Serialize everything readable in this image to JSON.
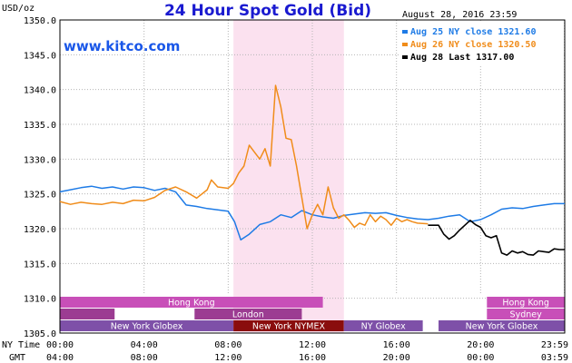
{
  "header": {
    "title": "24 Hour Spot Gold (Bid)",
    "currency": "USD/oz",
    "timestamp": "August 28, 2016 23:59",
    "watermark": "www.kitco.com"
  },
  "legend": [
    {
      "label": "Aug 25 NY close 1321.60",
      "color": "#1e7be6"
    },
    {
      "label": "Aug 26 NY close 1320.50",
      "color": "#f08c1a"
    },
    {
      "label": "Aug 28 Last 1317.00",
      "color": "#000000"
    }
  ],
  "chart_data": {
    "type": "line",
    "title": "24 Hour Spot Gold (Bid)",
    "ylabel": "USD/oz",
    "ylim": [
      1305.0,
      1350.0
    ],
    "yticks": [
      "1350.0",
      "1345.0",
      "1340.0",
      "1335.0",
      "1330.0",
      "1325.0",
      "1320.0",
      "1315.0",
      "1310.0",
      "1305.0"
    ],
    "xlim": [
      0,
      24
    ],
    "x_tick_hours": [
      0,
      4,
      8,
      12,
      16,
      20,
      23.983
    ],
    "x_rows": [
      {
        "label": "NY Time",
        "ticks": [
          "00:00",
          "04:00",
          "08:00",
          "12:00",
          "16:00",
          "20:00",
          "23:59"
        ]
      },
      {
        "label": "GMT",
        "ticks": [
          "04:00",
          "08:00",
          "12:00",
          "16:00",
          "20:00",
          "00:00",
          "03:59"
        ]
      }
    ],
    "grid": true,
    "legend_position": "top-right",
    "highlight": {
      "start": 8.25,
      "end": 13.5,
      "color": "#fbe1ef"
    },
    "sessions": [
      {
        "name": "Hong Kong",
        "row": 0,
        "start": 0,
        "end": 12.5,
        "color": "#c84fb8",
        "show_label": true
      },
      {
        "name": "Hong Kong",
        "row": 0,
        "start": 20.3,
        "end": 24,
        "color": "#c84fb8",
        "show_label": true
      },
      {
        "name": "London",
        "row": 1,
        "start": 0,
        "end": 2.6,
        "color": "#9c3c92",
        "show_label": false
      },
      {
        "name": "London",
        "row": 1,
        "start": 6.4,
        "end": 11.5,
        "color": "#9c3c92",
        "show_label": true
      },
      {
        "name": "Sydney",
        "row": 1,
        "start": 20.3,
        "end": 24,
        "color": "#c84fb8",
        "show_label": true
      },
      {
        "name": "New York Globex",
        "row": 2,
        "start": 0,
        "end": 8.25,
        "color": "#7e50a8",
        "show_label": true
      },
      {
        "name": "New York NYMEX",
        "row": 2,
        "start": 8.25,
        "end": 13.5,
        "color": "#8a0d0d",
        "show_label": true
      },
      {
        "name": "NY Globex",
        "row": 2,
        "start": 13.5,
        "end": 17.25,
        "color": "#7e50a8",
        "show_label": true
      },
      {
        "name": "New York Globex",
        "row": 2,
        "start": 18.0,
        "end": 24,
        "color": "#7e50a8",
        "show_label": true
      }
    ],
    "series": [
      {
        "name": "Aug 25 NY close 1321.60",
        "color": "#1e7be6",
        "x": [
          0,
          0.5,
          1,
          1.5,
          2,
          2.5,
          3,
          3.5,
          4,
          4.5,
          5,
          5.5,
          6,
          6.5,
          7,
          7.5,
          8,
          8.3,
          8.6,
          9,
          9.5,
          10,
          10.5,
          11,
          11.5,
          12,
          12.5,
          13,
          13.5,
          14,
          14.5,
          15,
          15.5,
          16,
          16.5,
          17,
          17.5,
          18,
          18.5,
          19,
          19.5,
          20,
          20.5,
          21,
          21.5,
          22,
          22.5,
          23,
          23.5,
          24
        ],
        "y": [
          1325.3,
          1325.6,
          1325.9,
          1326.1,
          1325.8,
          1326.0,
          1325.7,
          1326.0,
          1325.9,
          1325.5,
          1325.8,
          1325.3,
          1323.4,
          1323.2,
          1322.9,
          1322.7,
          1322.5,
          1321.0,
          1318.4,
          1319.2,
          1320.6,
          1321.0,
          1322.0,
          1321.6,
          1322.6,
          1322.0,
          1321.7,
          1321.5,
          1321.9,
          1322.1,
          1322.3,
          1322.2,
          1322.3,
          1321.9,
          1321.6,
          1321.4,
          1321.3,
          1321.5,
          1321.8,
          1322.0,
          1321.0,
          1321.3,
          1322.0,
          1322.8,
          1323.0,
          1322.9,
          1323.2,
          1323.4,
          1323.6,
          1323.6
        ]
      },
      {
        "name": "Aug 26 NY close 1320.50",
        "color": "#f08c1a",
        "x": [
          0,
          0.5,
          1,
          1.5,
          2,
          2.5,
          3,
          3.5,
          4,
          4.5,
          5,
          5.5,
          6,
          6.5,
          7,
          7.2,
          7.5,
          8,
          8.25,
          8.5,
          8.75,
          9,
          9.25,
          9.5,
          9.75,
          10,
          10.25,
          10.5,
          10.75,
          11,
          11.25,
          11.5,
          11.75,
          12,
          12.25,
          12.5,
          12.75,
          13,
          13.25,
          13.5,
          13.75,
          14,
          14.25,
          14.5,
          14.75,
          15,
          15.25,
          15.5,
          15.75,
          16,
          16.25,
          16.5,
          16.75,
          17,
          17.5
        ],
        "y": [
          1323.9,
          1323.5,
          1323.8,
          1323.6,
          1323.5,
          1323.8,
          1323.6,
          1324.1,
          1324.0,
          1324.5,
          1325.5,
          1326.0,
          1325.3,
          1324.4,
          1325.6,
          1327.0,
          1326.0,
          1325.8,
          1326.5,
          1328.0,
          1329.0,
          1332.0,
          1331.0,
          1330.0,
          1331.5,
          1329.0,
          1340.6,
          1337.5,
          1333.0,
          1332.8,
          1329.0,
          1324.5,
          1320.0,
          1322.0,
          1323.5,
          1322.0,
          1326.0,
          1323.0,
          1321.5,
          1322.0,
          1321.2,
          1320.2,
          1320.8,
          1320.5,
          1322.0,
          1321.0,
          1321.8,
          1321.3,
          1320.5,
          1321.5,
          1321.0,
          1321.3,
          1321.0,
          1320.8,
          1320.7
        ]
      },
      {
        "name": "Aug 28 Last 1317.00",
        "color": "#000000",
        "x": [
          17.5,
          18.0,
          18.25,
          18.5,
          18.75,
          19.0,
          19.25,
          19.5,
          19.75,
          20.0,
          20.25,
          20.5,
          20.75,
          21.0,
          21.25,
          21.5,
          21.75,
          22.0,
          22.25,
          22.5,
          22.75,
          23.0,
          23.25,
          23.5,
          23.75,
          24.0
        ],
        "y": [
          1320.5,
          1320.5,
          1319.2,
          1318.5,
          1319.0,
          1319.8,
          1320.5,
          1321.2,
          1320.6,
          1320.2,
          1319.0,
          1318.7,
          1319.0,
          1316.5,
          1316.2,
          1316.8,
          1316.5,
          1316.7,
          1316.3,
          1316.2,
          1316.8,
          1316.7,
          1316.6,
          1317.1,
          1317.0,
          1317.0
        ]
      }
    ]
  }
}
